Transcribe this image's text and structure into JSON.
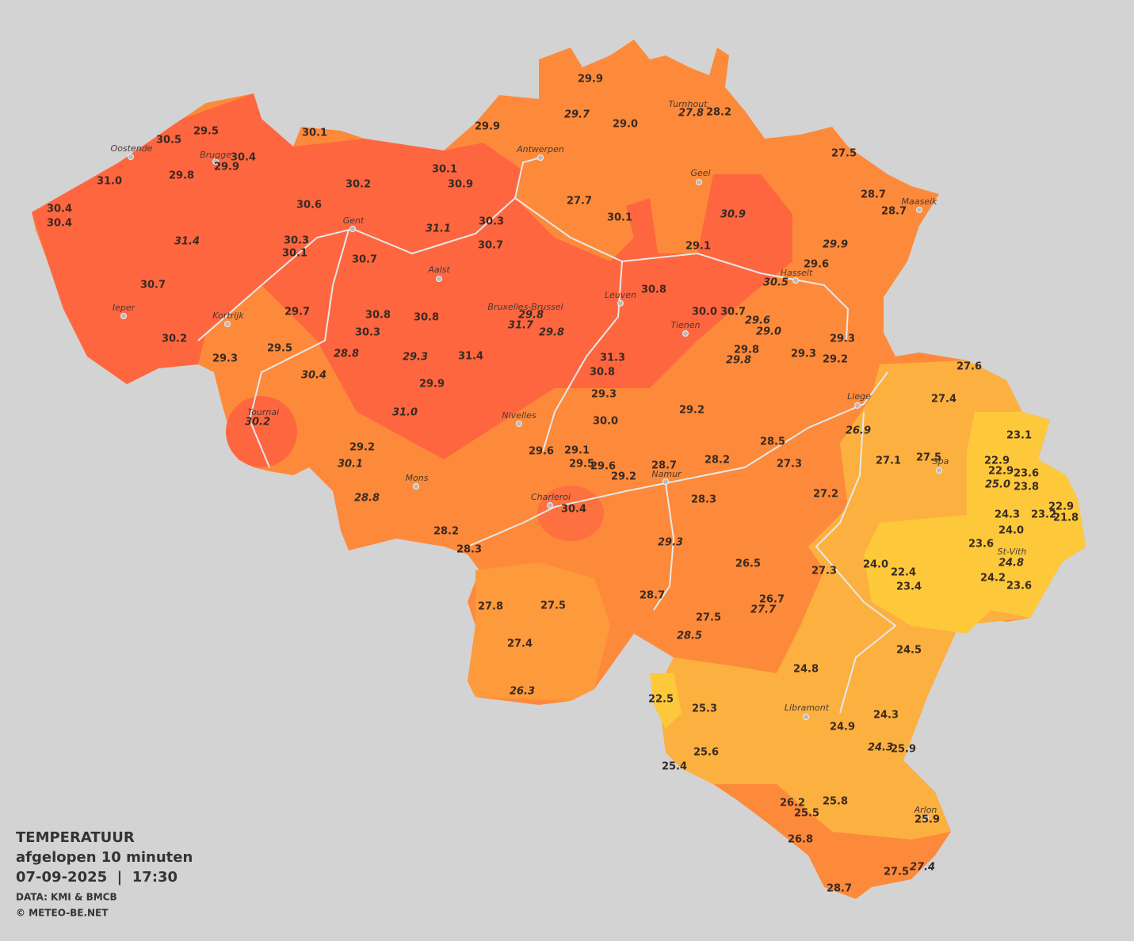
{
  "legend": {
    "title": "TEMPERATUUR",
    "subtitle": "afgelopen 10 minuten",
    "datetime": "07-09-2025  |  17:30",
    "source": "DATA: KMI & BMCB",
    "copyright": "© METEO-BE.NET"
  },
  "cities": [
    "Oostende",
    "Brugge",
    "Gent",
    "Antwerpen",
    "Turnhout",
    "Geel",
    "Maaseik",
    "Hasselt",
    "Aalst",
    "Leuven",
    "Bruxelles-Brussel",
    "Tienen",
    "Ieper",
    "Kortrijk",
    "Tournai",
    "Liege",
    "Nivelles",
    "Mons",
    "Namur",
    "Spa",
    "Charleroi",
    "St-Vith",
    "Libramont",
    "Arlon"
  ],
  "readings": [
    "29.9",
    "29.7",
    "29.0",
    "27.8",
    "28.2",
    "29.5",
    "30.5",
    "30.1",
    "29.9",
    "30.4",
    "29.9",
    "29.8",
    "31.0",
    "30.1",
    "30.9",
    "30.2",
    "27.5",
    "27.7",
    "30.1",
    "30.9",
    "28.7",
    "28.7",
    "30.4",
    "30.4",
    "30.6",
    "30.3",
    "31.1",
    "31.4",
    "30.3",
    "30.1",
    "30.7",
    "29.1",
    "29.9",
    "30.7",
    "29.6",
    "30.5",
    "30.7",
    "30.8",
    "29.7",
    "30.8",
    "30.8",
    "29.8",
    "30.0",
    "30.7",
    "31.7",
    "29.8",
    "29.6",
    "29.0",
    "30.3",
    "30.2",
    "29.3",
    "29.5",
    "28.8",
    "29.8",
    "29.8",
    "29.3",
    "29.2",
    "29.3",
    "29.3",
    "31.4",
    "31.3",
    "30.8",
    "30.4",
    "29.9",
    "27.6",
    "27.4",
    "29.3",
    "29.2",
    "31.0",
    "30.2",
    "30.0",
    "26.9",
    "23.1",
    "28.5",
    "29.2",
    "29.6",
    "29.1",
    "29.5",
    "29.6",
    "30.1",
    "28.7",
    "28.2",
    "27.3",
    "27.1",
    "27.5",
    "22.9",
    "22.9",
    "23.6",
    "29.2",
    "25.0",
    "23.8",
    "28.8",
    "28.3",
    "27.2",
    "30.4",
    "22.9",
    "24.3",
    "23.2",
    "21.8",
    "24.0",
    "29.3",
    "28.2",
    "28.3",
    "23.6",
    "26.5",
    "24.0",
    "24.8",
    "22.4",
    "27.3",
    "24.2",
    "23.4",
    "23.6",
    "28.7",
    "26.7",
    "27.7",
    "27.8",
    "27.5",
    "27.5",
    "28.5",
    "27.4",
    "24.5",
    "24.8",
    "26.3",
    "22.5",
    "25.3",
    "24.3",
    "24.9",
    "24.3",
    "25.9",
    "25.6",
    "25.4",
    "25.8",
    "26.2",
    "25.5",
    "25.9",
    "26.8",
    "27.5",
    "27.4",
    "28.7"
  ]
}
